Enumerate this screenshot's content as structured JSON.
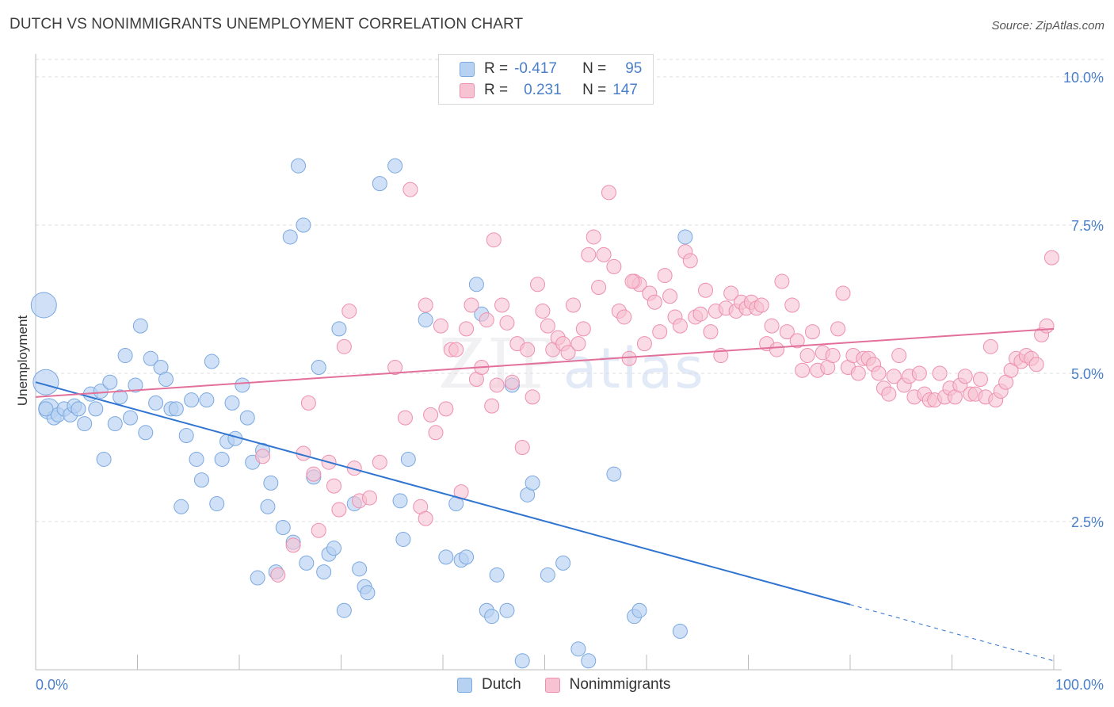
{
  "header": {
    "title": "DUTCH VS NONIMMIGRANTS UNEMPLOYMENT CORRELATION CHART",
    "source": "Source: ZipAtlas.com"
  },
  "legend": {
    "dutch": {
      "r_label": "R =",
      "r_value": "-0.417",
      "n_label": "N =",
      "n_value": "95"
    },
    "nonimmigrants": {
      "r_label": "R =",
      "r_value": "0.231",
      "n_label": "N =",
      "n_value": "147"
    }
  },
  "watermark": {
    "zip": "ZIP",
    "atlas": "atlas"
  },
  "colors": {
    "dutch_fill": "#b7d1f2",
    "dutch_stroke": "#7aa8e0",
    "dutch_line": "#2f74d0",
    "non_fill": "#f7c2d2",
    "non_stroke": "#ee8fae",
    "non_line": "#e2709a",
    "tick_text": "#4a7fc9",
    "grid": "#dddddd"
  },
  "chart_data": {
    "type": "scatter",
    "title": "DUTCH VS NONIMMIGRANTS UNEMPLOYMENT CORRELATION CHART",
    "xlabel": "",
    "ylabel": "Unemployment",
    "xlim": [
      0,
      100
    ],
    "ylim": [
      0,
      10.5
    ],
    "x_tick_labels": [
      "0.0%",
      "100.0%"
    ],
    "y_ticks": [
      2.5,
      5.0,
      7.5,
      10.0
    ],
    "y_tick_labels": [
      "2.5%",
      "5.0%",
      "7.5%",
      "10.0%"
    ],
    "grid": true,
    "legend_position": "bottom",
    "series": [
      {
        "name": "Dutch",
        "trend": {
          "x0": 0,
          "y0": 4.85,
          "x1": 80,
          "y1": 1.1,
          "dashed_to_x": 100,
          "dashed_to_y": 0.15
        },
        "points": [
          [
            0.8,
            6.15
          ],
          [
            1.0,
            4.85
          ],
          [
            1.3,
            4.4
          ],
          [
            1.8,
            4.25
          ],
          [
            2.2,
            4.3
          ],
          [
            2.8,
            4.4
          ],
          [
            3.4,
            4.3
          ],
          [
            3.8,
            4.45
          ],
          [
            4.2,
            4.4
          ],
          [
            4.8,
            4.15
          ],
          [
            5.4,
            4.65
          ],
          [
            5.9,
            4.4
          ],
          [
            6.4,
            4.7
          ],
          [
            6.7,
            3.55
          ],
          [
            7.3,
            4.85
          ],
          [
            7.8,
            4.15
          ],
          [
            8.3,
            4.6
          ],
          [
            8.8,
            5.3
          ],
          [
            9.3,
            4.25
          ],
          [
            9.8,
            4.8
          ],
          [
            10.3,
            5.8
          ],
          [
            10.8,
            4.0
          ],
          [
            11.3,
            5.25
          ],
          [
            11.8,
            4.5
          ],
          [
            12.3,
            5.1
          ],
          [
            12.8,
            4.9
          ],
          [
            13.3,
            4.4
          ],
          [
            13.8,
            4.4
          ],
          [
            14.3,
            2.75
          ],
          [
            14.8,
            3.95
          ],
          [
            15.3,
            4.55
          ],
          [
            15.8,
            3.55
          ],
          [
            16.3,
            3.2
          ],
          [
            16.8,
            4.55
          ],
          [
            17.3,
            5.2
          ],
          [
            17.8,
            2.8
          ],
          [
            18.3,
            3.55
          ],
          [
            18.8,
            3.85
          ],
          [
            19.3,
            4.5
          ],
          [
            19.6,
            3.9
          ],
          [
            20.3,
            4.8
          ],
          [
            20.8,
            4.25
          ],
          [
            21.3,
            3.5
          ],
          [
            21.8,
            1.55
          ],
          [
            22.3,
            3.7
          ],
          [
            22.8,
            2.75
          ],
          [
            23.1,
            3.15
          ],
          [
            23.6,
            1.65
          ],
          [
            24.3,
            2.4
          ],
          [
            25.0,
            7.3
          ],
          [
            25.3,
            2.15
          ],
          [
            25.8,
            8.5
          ],
          [
            26.3,
            7.5
          ],
          [
            26.6,
            1.8
          ],
          [
            27.3,
            3.25
          ],
          [
            27.8,
            5.1
          ],
          [
            28.3,
            1.65
          ],
          [
            28.8,
            1.95
          ],
          [
            29.3,
            2.05
          ],
          [
            29.8,
            5.75
          ],
          [
            30.3,
            1.0
          ],
          [
            31.3,
            2.8
          ],
          [
            31.8,
            1.7
          ],
          [
            32.3,
            1.4
          ],
          [
            32.6,
            1.3
          ],
          [
            33.8,
            8.2
          ],
          [
            35.3,
            8.5
          ],
          [
            35.8,
            2.85
          ],
          [
            36.1,
            2.2
          ],
          [
            36.6,
            3.55
          ],
          [
            38.3,
            5.9
          ],
          [
            40.3,
            1.9
          ],
          [
            41.3,
            2.8
          ],
          [
            41.8,
            1.85
          ],
          [
            42.3,
            1.9
          ],
          [
            43.3,
            6.5
          ],
          [
            43.8,
            6.0
          ],
          [
            44.3,
            1.0
          ],
          [
            44.8,
            0.9
          ],
          [
            45.3,
            1.6
          ],
          [
            46.3,
            1.0
          ],
          [
            46.8,
            4.8
          ],
          [
            47.8,
            0.15
          ],
          [
            48.3,
            2.95
          ],
          [
            48.8,
            3.15
          ],
          [
            50.3,
            1.6
          ],
          [
            51.8,
            1.8
          ],
          [
            53.3,
            0.35
          ],
          [
            54.3,
            0.15
          ],
          [
            56.8,
            3.3
          ],
          [
            58.8,
            0.9
          ],
          [
            59.3,
            1.0
          ],
          [
            63.3,
            0.65
          ],
          [
            63.8,
            7.3
          ],
          [
            1.0,
            4.4
          ]
        ]
      },
      {
        "name": "Nonimmigrants",
        "trend": {
          "x0": 0,
          "y0": 4.6,
          "x1": 100,
          "y1": 5.75
        },
        "points": [
          [
            22.3,
            3.6
          ],
          [
            23.8,
            1.6
          ],
          [
            25.3,
            2.1
          ],
          [
            26.3,
            3.65
          ],
          [
            26.8,
            4.5
          ],
          [
            27.3,
            3.3
          ],
          [
            27.8,
            2.35
          ],
          [
            28.8,
            3.5
          ],
          [
            29.3,
            3.1
          ],
          [
            29.8,
            2.7
          ],
          [
            30.3,
            5.45
          ],
          [
            30.8,
            6.05
          ],
          [
            31.3,
            3.4
          ],
          [
            31.8,
            2.85
          ],
          [
            32.8,
            2.9
          ],
          [
            33.8,
            3.5
          ],
          [
            35.3,
            5.1
          ],
          [
            36.3,
            4.25
          ],
          [
            36.8,
            8.1
          ],
          [
            37.8,
            2.75
          ],
          [
            38.3,
            6.15
          ],
          [
            38.3,
            2.55
          ],
          [
            38.8,
            4.3
          ],
          [
            39.3,
            4.0
          ],
          [
            39.8,
            5.8
          ],
          [
            40.3,
            4.4
          ],
          [
            40.8,
            5.4
          ],
          [
            41.3,
            5.4
          ],
          [
            41.8,
            3.0
          ],
          [
            42.3,
            5.75
          ],
          [
            42.8,
            6.15
          ],
          [
            43.3,
            4.9
          ],
          [
            43.8,
            5.1
          ],
          [
            44.3,
            5.9
          ],
          [
            44.8,
            4.45
          ],
          [
            45.3,
            4.8
          ],
          [
            45.8,
            6.15
          ],
          [
            46.3,
            5.85
          ],
          [
            46.8,
            4.85
          ],
          [
            47.3,
            5.5
          ],
          [
            47.8,
            3.75
          ],
          [
            48.3,
            5.4
          ],
          [
            48.8,
            4.6
          ],
          [
            49.3,
            6.5
          ],
          [
            49.8,
            6.05
          ],
          [
            50.3,
            5.8
          ],
          [
            50.8,
            5.4
          ],
          [
            51.3,
            5.6
          ],
          [
            51.8,
            5.5
          ],
          [
            52.3,
            5.35
          ],
          [
            52.8,
            6.15
          ],
          [
            53.3,
            5.5
          ],
          [
            53.8,
            5.75
          ],
          [
            54.3,
            7.0
          ],
          [
            54.8,
            7.3
          ],
          [
            55.3,
            6.45
          ],
          [
            55.8,
            7.0
          ],
          [
            56.3,
            8.05
          ],
          [
            56.8,
            6.8
          ],
          [
            57.3,
            6.05
          ],
          [
            57.8,
            5.95
          ],
          [
            58.3,
            5.25
          ],
          [
            58.8,
            6.55
          ],
          [
            59.3,
            6.5
          ],
          [
            59.8,
            5.5
          ],
          [
            60.3,
            6.35
          ],
          [
            60.8,
            6.2
          ],
          [
            61.3,
            5.7
          ],
          [
            61.8,
            6.65
          ],
          [
            62.3,
            6.3
          ],
          [
            62.8,
            5.95
          ],
          [
            63.3,
            5.8
          ],
          [
            63.8,
            7.05
          ],
          [
            64.3,
            6.9
          ],
          [
            64.8,
            5.95
          ],
          [
            65.3,
            6.0
          ],
          [
            65.8,
            6.4
          ],
          [
            66.3,
            5.7
          ],
          [
            66.8,
            6.05
          ],
          [
            67.3,
            5.3
          ],
          [
            67.8,
            6.1
          ],
          [
            68.3,
            6.35
          ],
          [
            68.8,
            6.05
          ],
          [
            69.3,
            6.2
          ],
          [
            69.8,
            6.1
          ],
          [
            70.3,
            6.2
          ],
          [
            70.8,
            6.1
          ],
          [
            71.3,
            6.15
          ],
          [
            71.8,
            5.5
          ],
          [
            72.3,
            5.8
          ],
          [
            72.8,
            5.4
          ],
          [
            73.3,
            6.55
          ],
          [
            73.8,
            5.7
          ],
          [
            74.3,
            6.15
          ],
          [
            74.8,
            5.55
          ],
          [
            75.3,
            5.05
          ],
          [
            75.8,
            5.3
          ],
          [
            76.3,
            5.7
          ],
          [
            76.8,
            5.05
          ],
          [
            77.3,
            5.35
          ],
          [
            77.8,
            5.1
          ],
          [
            78.3,
            5.3
          ],
          [
            78.8,
            5.75
          ],
          [
            79.3,
            6.35
          ],
          [
            79.8,
            5.1
          ],
          [
            80.3,
            5.3
          ],
          [
            80.8,
            5.0
          ],
          [
            81.3,
            5.25
          ],
          [
            81.8,
            5.25
          ],
          [
            82.3,
            5.15
          ],
          [
            82.8,
            5.0
          ],
          [
            83.3,
            4.75
          ],
          [
            83.8,
            4.65
          ],
          [
            84.3,
            4.95
          ],
          [
            84.8,
            5.3
          ],
          [
            85.3,
            4.8
          ],
          [
            85.8,
            4.95
          ],
          [
            86.3,
            4.6
          ],
          [
            86.8,
            5.0
          ],
          [
            87.3,
            4.65
          ],
          [
            87.8,
            4.55
          ],
          [
            88.3,
            4.55
          ],
          [
            88.8,
            5.0
          ],
          [
            89.3,
            4.6
          ],
          [
            89.8,
            4.75
          ],
          [
            90.3,
            4.6
          ],
          [
            90.8,
            4.8
          ],
          [
            91.3,
            4.95
          ],
          [
            91.8,
            4.65
          ],
          [
            92.3,
            4.65
          ],
          [
            92.8,
            4.9
          ],
          [
            93.3,
            4.6
          ],
          [
            93.8,
            5.45
          ],
          [
            94.3,
            4.55
          ],
          [
            94.8,
            4.7
          ],
          [
            95.3,
            4.85
          ],
          [
            95.8,
            5.05
          ],
          [
            96.3,
            5.25
          ],
          [
            96.8,
            5.2
          ],
          [
            97.3,
            5.3
          ],
          [
            97.8,
            5.25
          ],
          [
            98.3,
            5.15
          ],
          [
            98.8,
            5.65
          ],
          [
            99.3,
            5.8
          ],
          [
            99.8,
            6.95
          ],
          [
            58.6,
            6.55
          ],
          [
            45.0,
            7.25
          ]
        ]
      }
    ]
  }
}
